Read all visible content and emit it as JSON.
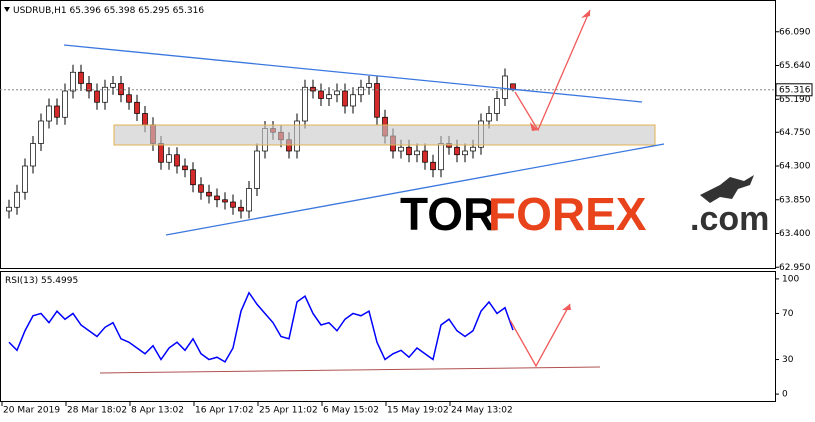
{
  "chart_data": {
    "type": "candlestick",
    "symbol": "USDRUB,H1",
    "up_color": "#ffffff",
    "down_color": "#d42a2a",
    "wick_color": "#000000",
    "x_labels": [
      "20 Mar 2019",
      "28 Mar 18:02",
      "8 Apr 13:02",
      "16 Apr 17:02",
      "25 Apr 11:02",
      "6 May 15:02",
      "15 May 19:02",
      "24 May 13:02"
    ],
    "open": [
      63.7,
      63.75,
      63.95,
      64.3,
      64.6,
      64.9,
      65.1,
      64.95,
      65.3,
      65.55,
      65.4,
      65.3,
      65.15,
      65.35,
      65.4,
      65.25,
      65.15,
      65.0,
      64.85,
      64.6,
      64.35,
      64.45,
      64.3,
      64.25,
      64.05,
      63.95,
      63.9,
      63.85,
      63.82,
      63.75,
      63.7,
      64.0,
      64.5,
      64.8,
      64.75,
      64.65,
      64.5,
      64.9,
      65.35,
      65.3,
      65.2,
      65.25,
      65.3,
      65.1,
      65.25,
      65.35,
      65.4,
      64.95,
      64.7,
      64.5,
      64.55,
      64.45,
      64.5,
      64.35,
      64.25,
      64.6,
      64.55,
      64.45,
      64.5,
      64.55,
      64.9,
      65.0,
      65.2,
      65.396
    ],
    "high": [
      63.85,
      64.05,
      64.4,
      64.7,
      65.0,
      65.2,
      65.2,
      65.4,
      65.65,
      65.65,
      65.5,
      65.4,
      65.45,
      65.5,
      65.5,
      65.35,
      65.25,
      65.1,
      64.95,
      64.7,
      64.55,
      64.55,
      64.4,
      64.35,
      64.15,
      64.05,
      64.0,
      63.95,
      63.92,
      63.85,
      64.1,
      64.6,
      64.9,
      64.9,
      64.85,
      64.75,
      65.0,
      65.45,
      65.45,
      65.4,
      65.35,
      65.4,
      65.4,
      65.35,
      65.45,
      65.5,
      65.5,
      65.05,
      64.8,
      64.65,
      64.65,
      64.6,
      64.6,
      64.45,
      64.7,
      64.7,
      64.65,
      64.6,
      64.65,
      65.0,
      65.1,
      65.3,
      65.6,
      65.398
    ],
    "low": [
      63.6,
      63.65,
      63.85,
      64.2,
      64.5,
      64.8,
      64.85,
      64.85,
      65.2,
      65.3,
      65.2,
      65.05,
      65.05,
      65.25,
      65.15,
      65.05,
      64.9,
      64.75,
      64.5,
      64.25,
      64.25,
      64.2,
      64.15,
      63.95,
      63.85,
      63.8,
      63.75,
      63.72,
      63.65,
      63.6,
      63.6,
      63.9,
      64.4,
      64.65,
      64.55,
      64.4,
      64.4,
      64.8,
      65.2,
      65.1,
      65.1,
      65.15,
      65.0,
      65.0,
      65.15,
      65.25,
      64.85,
      64.6,
      64.4,
      64.4,
      64.35,
      64.35,
      64.25,
      64.15,
      64.15,
      64.45,
      64.35,
      64.35,
      64.4,
      64.45,
      64.8,
      64.9,
      65.1,
      65.295
    ],
    "close": [
      63.75,
      63.95,
      64.3,
      64.6,
      64.9,
      65.1,
      64.95,
      65.3,
      65.55,
      65.4,
      65.3,
      65.15,
      65.35,
      65.4,
      65.25,
      65.15,
      65.0,
      64.85,
      64.6,
      64.35,
      64.45,
      64.3,
      64.25,
      64.05,
      63.95,
      63.9,
      63.85,
      63.82,
      63.75,
      63.7,
      64.0,
      64.5,
      64.8,
      64.75,
      64.65,
      64.5,
      64.9,
      65.35,
      65.3,
      65.2,
      65.25,
      65.3,
      65.1,
      65.25,
      65.35,
      65.4,
      64.95,
      64.7,
      64.5,
      64.55,
      64.45,
      64.5,
      64.35,
      64.25,
      64.6,
      64.55,
      64.45,
      64.5,
      64.55,
      64.9,
      65.0,
      65.2,
      65.5,
      65.316
    ],
    "ylim": [
      62.94,
      66.5
    ],
    "yticks": [
      {
        "value": 66.09,
        "label": "66.090"
      },
      {
        "value": 65.64,
        "label": "65.640"
      },
      {
        "value": 65.19,
        "label": "65.190"
      },
      {
        "value": 64.75,
        "label": "64.750"
      },
      {
        "value": 64.3,
        "label": "64.300"
      },
      {
        "value": 63.85,
        "label": "63.850"
      },
      {
        "value": 63.4,
        "label": "63.400"
      },
      {
        "value": 62.95,
        "label": "62.950"
      }
    ],
    "rsi": {
      "name": "RSI(13)",
      "color": "#0000ff",
      "values": [
        45,
        38,
        55,
        68,
        70,
        62,
        72,
        65,
        70,
        60,
        55,
        50,
        58,
        62,
        48,
        45,
        40,
        35,
        42,
        30,
        40,
        45,
        38,
        48,
        35,
        30,
        32,
        28,
        40,
        72,
        88,
        78,
        70,
        62,
        50,
        48,
        80,
        85,
        70,
        60,
        62,
        55,
        65,
        70,
        68,
        72,
        45,
        30,
        35,
        38,
        32,
        40,
        35,
        30,
        60,
        65,
        55,
        50,
        55,
        72,
        80,
        70,
        75,
        55.4995
      ],
      "ylim": [
        -6,
        106
      ],
      "yticks": [
        100,
        70,
        30,
        0
      ]
    },
    "watermark": {
      "part1": "TOR",
      "part2": "FOREX",
      "part3": ".com"
    }
  }
}
